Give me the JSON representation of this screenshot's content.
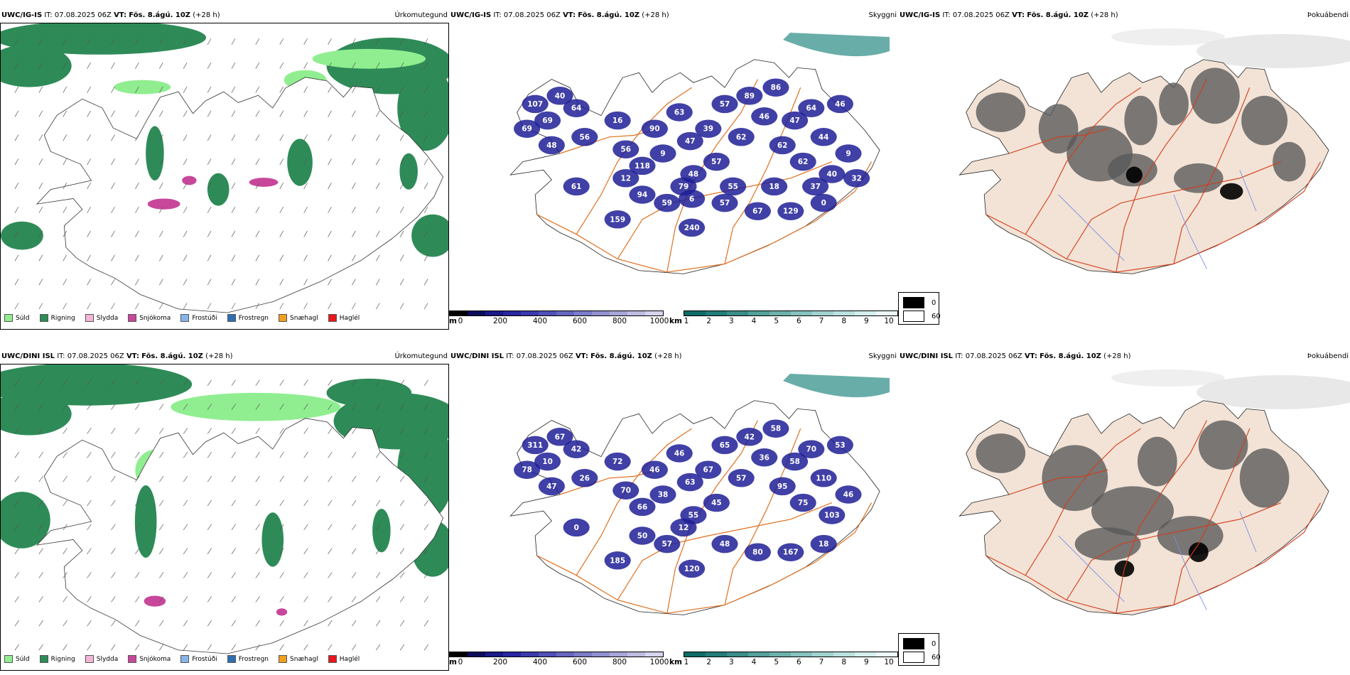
{
  "rows": [
    {
      "model": "UWC/IG-IS",
      "init_label": "IT:",
      "init_time": "07.08.2025 06Z",
      "valid_label": "VT:",
      "valid_time": "Fös. 8.ágú. 10Z",
      "lead": "(+28 h)",
      "panel_titles": [
        "Úrkomutegund",
        "Skyggni",
        "Þokuábendi"
      ],
      "cloud_labels": [
        "107",
        "69",
        "40",
        "64",
        "69",
        "48",
        "56",
        "16",
        "56",
        "118",
        "90",
        "9",
        "63",
        "47",
        "48",
        "39",
        "57",
        "57",
        "62",
        "89",
        "46",
        "86",
        "62",
        "47",
        "62",
        "64",
        "44",
        "40",
        "46",
        "9",
        "94",
        "59",
        "240",
        "57",
        "67",
        "129",
        "0",
        "61",
        "159",
        "79",
        "55",
        "18",
        "37",
        "32",
        "12",
        "6"
      ]
    },
    {
      "model": "UWC/DINI ISL",
      "init_label": "IT:",
      "init_time": "07.08.2025 06Z",
      "valid_label": "VT:",
      "valid_time": "Fös. 8.ágú. 10Z",
      "lead": "(+28 h)",
      "panel_titles": [
        "Úrkomutegund",
        "Skyggni",
        "Þokuábendi"
      ],
      "cloud_labels": [
        "311",
        "10",
        "67",
        "42",
        "78",
        "47",
        "26",
        "72",
        "70",
        "66",
        "46",
        "38",
        "46",
        "63",
        "55",
        "67",
        "45",
        "65",
        "57",
        "42",
        "36",
        "58",
        "95",
        "58",
        "75",
        "70",
        "110",
        "103",
        "53",
        "46",
        "50",
        "57",
        "120",
        "48",
        "80",
        "167",
        "18",
        "0",
        "185",
        "12"
      ]
    }
  ],
  "precip_legend": [
    {
      "label": "Súld",
      "color": "#90ee90"
    },
    {
      "label": "Rigning",
      "color": "#2e8b57"
    },
    {
      "label": "Slydda",
      "color": "#f4b6d8"
    },
    {
      "label": "Snjókoma",
      "color": "#c8479b"
    },
    {
      "label": "Frostúði",
      "color": "#87b5e8"
    },
    {
      "label": "Frostregn",
      "color": "#2f6fb0"
    },
    {
      "label": "Snæhagl",
      "color": "#f0a020"
    },
    {
      "label": "Haglél",
      "color": "#e8171c"
    }
  ],
  "cloudbase_scale": {
    "unit": "m",
    "ticks": [
      "0",
      "200",
      "400",
      "600",
      "800",
      "1000"
    ],
    "colors": [
      "#000000",
      "#0c0c5a",
      "#1a1a8a",
      "#2727a0",
      "#3a3aad",
      "#5050b8",
      "#6666c0",
      "#7c7cc8",
      "#9090d0",
      "#a6a6d8",
      "#bcbce2",
      "#d4d4ee"
    ]
  },
  "visibility_scale": {
    "unit": "km",
    "ticks": [
      "1",
      "2",
      "3",
      "4",
      "5",
      "6",
      "7",
      "8",
      "9",
      "10"
    ],
    "colors": [
      "#0e6b66",
      "#237c77",
      "#3a8d88",
      "#53a09b",
      "#6cb1ad",
      "#86c2bf",
      "#a0d3d0",
      "#bae2e0",
      "#d4efee",
      "#ecf9f8"
    ]
  },
  "fog_scale": {
    "values": [
      "0",
      "60"
    ],
    "colors": [
      "#000000",
      "#ffffff"
    ]
  },
  "colors": {
    "rain": "#2e8b57",
    "drizzle": "#90ee90",
    "snow": "#c8479b",
    "cloud": "#1f1f96",
    "vis_low": "#2a8a85",
    "roads": "#e07020",
    "fog_roads": "#d43b1a",
    "land_fog": "#f2e3d6",
    "rivers": "#7b8fe8"
  }
}
